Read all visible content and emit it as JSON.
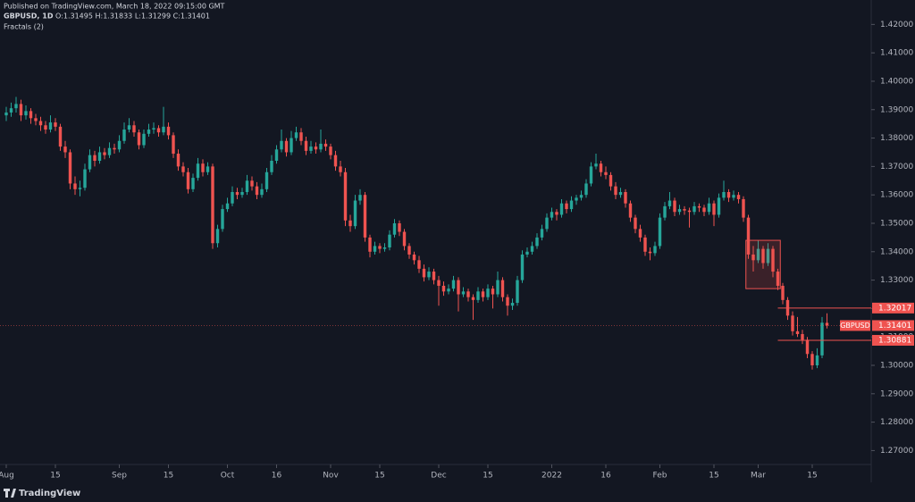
{
  "header": {
    "published": "Published on TradingView.com, March 18, 2022 09:15:00 GMT",
    "symbol": "GBPUSD, 1D",
    "ohlc_text": "O:1.31495 H:1.31833 L:1.31299 C:1.31401",
    "indicator": "Fractals (2)"
  },
  "footer": {
    "brand": "TradingView"
  },
  "chart_data": {
    "type": "candlestick",
    "up_color": "#26a69a",
    "down_color": "#ef5350",
    "xlim": [
      0,
      176
    ],
    "xticks": [
      {
        "value": 0,
        "label": "Aug"
      },
      {
        "value": 10,
        "label": "15"
      },
      {
        "value": 23,
        "label": "Sep"
      },
      {
        "value": 33,
        "label": "15"
      },
      {
        "value": 45,
        "label": "Oct"
      },
      {
        "value": 55,
        "label": "16"
      },
      {
        "value": 66,
        "label": "Nov"
      },
      {
        "value": 76,
        "label": "15"
      },
      {
        "value": 88,
        "label": "Dec"
      },
      {
        "value": 98,
        "label": "15"
      },
      {
        "value": 111,
        "label": "2022"
      },
      {
        "value": 122,
        "label": "16"
      },
      {
        "value": 133,
        "label": "Feb"
      },
      {
        "value": 144,
        "label": "15"
      },
      {
        "value": 153,
        "label": "Mar"
      },
      {
        "value": 164,
        "label": "15"
      }
    ],
    "ylim": [
      1.2651,
      1.4286
    ],
    "yticks": [
      {
        "value": 1.27,
        "label": "1.27000"
      },
      {
        "value": 1.28,
        "label": "1.28000"
      },
      {
        "value": 1.29,
        "label": "1.29000"
      },
      {
        "value": 1.3,
        "label": "1.30000"
      },
      {
        "value": 1.31,
        "label": "1.31000"
      },
      {
        "value": 1.32,
        "label": "1.32000"
      },
      {
        "value": 1.33,
        "label": "1.33000"
      },
      {
        "value": 1.34,
        "label": "1.34000"
      },
      {
        "value": 1.35,
        "label": "1.35000"
      },
      {
        "value": 1.36,
        "label": "1.36000"
      },
      {
        "value": 1.37,
        "label": "1.37000"
      },
      {
        "value": 1.38,
        "label": "1.38000"
      },
      {
        "value": 1.39,
        "label": "1.39000"
      },
      {
        "value": 1.4,
        "label": "1.40000"
      },
      {
        "value": 1.41,
        "label": "1.41000"
      },
      {
        "value": 1.42,
        "label": "1.42000"
      }
    ],
    "last_price": {
      "name": "GBPUSD",
      "value": 1.31401,
      "label": "1.31401"
    },
    "levels": [
      {
        "value": 1.32017,
        "label": "1.32017",
        "from": 157
      },
      {
        "value": 1.30881,
        "label": "1.30881",
        "from": 157
      }
    ],
    "highlight_box": {
      "x": [
        150.5,
        157.5
      ],
      "y": [
        1.327,
        1.344
      ]
    },
    "ohlc": [
      [
        1.388,
        1.391,
        1.386,
        1.389
      ],
      [
        1.389,
        1.3925,
        1.3875,
        1.3905
      ],
      [
        1.3905,
        1.3945,
        1.389,
        1.392
      ],
      [
        1.392,
        1.3935,
        1.386,
        1.388
      ],
      [
        1.388,
        1.3915,
        1.3865,
        1.3895
      ],
      [
        1.3895,
        1.3905,
        1.385,
        1.387
      ],
      [
        1.387,
        1.3885,
        1.3845,
        1.386
      ],
      [
        1.386,
        1.3875,
        1.3825,
        1.3845
      ],
      [
        1.3845,
        1.386,
        1.3815,
        1.383
      ],
      [
        1.383,
        1.388,
        1.382,
        1.3855
      ],
      [
        1.3855,
        1.387,
        1.3825,
        1.384
      ],
      [
        1.384,
        1.385,
        1.3755,
        1.377
      ],
      [
        1.377,
        1.379,
        1.373,
        1.375
      ],
      [
        1.375,
        1.376,
        1.362,
        1.364
      ],
      [
        1.364,
        1.3665,
        1.36,
        1.362
      ],
      [
        1.362,
        1.365,
        1.3595,
        1.3625
      ],
      [
        1.3625,
        1.371,
        1.3615,
        1.369
      ],
      [
        1.369,
        1.376,
        1.368,
        1.374
      ],
      [
        1.374,
        1.3755,
        1.37,
        1.372
      ],
      [
        1.372,
        1.377,
        1.371,
        1.375
      ],
      [
        1.375,
        1.3765,
        1.3725,
        1.374
      ],
      [
        1.374,
        1.3785,
        1.373,
        1.3765
      ],
      [
        1.3765,
        1.378,
        1.3745,
        1.376
      ],
      [
        1.376,
        1.381,
        1.375,
        1.379
      ],
      [
        1.379,
        1.3855,
        1.378,
        1.383
      ],
      [
        1.383,
        1.387,
        1.382,
        1.3845
      ],
      [
        1.3845,
        1.386,
        1.3805,
        1.382
      ],
      [
        1.382,
        1.383,
        1.376,
        1.3775
      ],
      [
        1.3775,
        1.383,
        1.3765,
        1.3815
      ],
      [
        1.3815,
        1.385,
        1.3805,
        1.383
      ],
      [
        1.383,
        1.3855,
        1.3815,
        1.3835
      ],
      [
        1.3835,
        1.3845,
        1.3805,
        1.382
      ],
      [
        1.382,
        1.391,
        1.381,
        1.384
      ],
      [
        1.384,
        1.3855,
        1.3795,
        1.381
      ],
      [
        1.381,
        1.382,
        1.373,
        1.3745
      ],
      [
        1.3745,
        1.376,
        1.3685,
        1.37
      ],
      [
        1.37,
        1.3715,
        1.3665,
        1.368
      ],
      [
        1.368,
        1.3695,
        1.3605,
        1.362
      ],
      [
        1.362,
        1.3675,
        1.361,
        1.366
      ],
      [
        1.366,
        1.373,
        1.365,
        1.371
      ],
      [
        1.371,
        1.3725,
        1.3665,
        1.368
      ],
      [
        1.368,
        1.3715,
        1.367,
        1.37
      ],
      [
        1.37,
        1.371,
        1.341,
        1.343
      ],
      [
        1.343,
        1.3495,
        1.3415,
        1.348
      ],
      [
        1.348,
        1.3565,
        1.347,
        1.355
      ],
      [
        1.355,
        1.359,
        1.354,
        1.357
      ],
      [
        1.357,
        1.363,
        1.356,
        1.361
      ],
      [
        1.361,
        1.3625,
        1.3585,
        1.36
      ],
      [
        1.36,
        1.3625,
        1.359,
        1.361
      ],
      [
        1.361,
        1.367,
        1.36,
        1.365
      ],
      [
        1.365,
        1.3665,
        1.3615,
        1.363
      ],
      [
        1.363,
        1.3645,
        1.3585,
        1.36
      ],
      [
        1.36,
        1.364,
        1.359,
        1.362
      ],
      [
        1.362,
        1.3695,
        1.361,
        1.368
      ],
      [
        1.368,
        1.374,
        1.367,
        1.372
      ],
      [
        1.372,
        1.3775,
        1.371,
        1.376
      ],
      [
        1.376,
        1.383,
        1.375,
        1.379
      ],
      [
        1.379,
        1.38,
        1.3735,
        1.375
      ],
      [
        1.375,
        1.3825,
        1.374,
        1.38
      ],
      [
        1.38,
        1.384,
        1.379,
        1.382
      ],
      [
        1.382,
        1.3835,
        1.3775,
        1.379
      ],
      [
        1.379,
        1.3805,
        1.374,
        1.3755
      ],
      [
        1.3755,
        1.379,
        1.3745,
        1.377
      ],
      [
        1.377,
        1.3785,
        1.3745,
        1.376
      ],
      [
        1.376,
        1.383,
        1.375,
        1.378
      ],
      [
        1.378,
        1.3795,
        1.3755,
        1.377
      ],
      [
        1.377,
        1.378,
        1.3725,
        1.374
      ],
      [
        1.374,
        1.3755,
        1.3685,
        1.37
      ],
      [
        1.37,
        1.372,
        1.3665,
        1.368
      ],
      [
        1.368,
        1.3695,
        1.349,
        1.351
      ],
      [
        1.351,
        1.353,
        1.347,
        1.349
      ],
      [
        1.349,
        1.36,
        1.348,
        1.358
      ],
      [
        1.358,
        1.362,
        1.3565,
        1.36
      ],
      [
        1.36,
        1.361,
        1.3435,
        1.345
      ],
      [
        1.345,
        1.346,
        1.338,
        1.34
      ],
      [
        1.34,
        1.3435,
        1.339,
        1.342
      ],
      [
        1.342,
        1.343,
        1.3395,
        1.341
      ],
      [
        1.341,
        1.343,
        1.34,
        1.3415
      ],
      [
        1.3415,
        1.3475,
        1.3405,
        1.346
      ],
      [
        1.346,
        1.3515,
        1.345,
        1.35
      ],
      [
        1.35,
        1.351,
        1.3455,
        1.347
      ],
      [
        1.347,
        1.348,
        1.3405,
        1.342
      ],
      [
        1.342,
        1.343,
        1.3375,
        1.339
      ],
      [
        1.339,
        1.34,
        1.3355,
        1.337
      ],
      [
        1.337,
        1.3385,
        1.3325,
        1.334
      ],
      [
        1.334,
        1.3355,
        1.3295,
        1.331
      ],
      [
        1.331,
        1.3345,
        1.33,
        1.333
      ],
      [
        1.333,
        1.334,
        1.3285,
        1.33
      ],
      [
        1.33,
        1.3315,
        1.321,
        1.328
      ],
      [
        1.328,
        1.3295,
        1.3245,
        1.326
      ],
      [
        1.326,
        1.3285,
        1.325,
        1.327
      ],
      [
        1.327,
        1.3315,
        1.326,
        1.33
      ],
      [
        1.33,
        1.331,
        1.319,
        1.325
      ],
      [
        1.325,
        1.3275,
        1.324,
        1.326
      ],
      [
        1.326,
        1.327,
        1.3225,
        1.324
      ],
      [
        1.324,
        1.325,
        1.316,
        1.323
      ],
      [
        1.323,
        1.3275,
        1.322,
        1.326
      ],
      [
        1.326,
        1.327,
        1.3225,
        1.324
      ],
      [
        1.324,
        1.3285,
        1.323,
        1.327
      ],
      [
        1.327,
        1.328,
        1.32,
        1.325
      ],
      [
        1.325,
        1.333,
        1.324,
        1.33
      ],
      [
        1.33,
        1.331,
        1.3225,
        1.324
      ],
      [
        1.324,
        1.325,
        1.3175,
        1.321
      ],
      [
        1.321,
        1.3235,
        1.3195,
        1.322
      ],
      [
        1.322,
        1.3315,
        1.321,
        1.33
      ],
      [
        1.33,
        1.3405,
        1.329,
        1.339
      ],
      [
        1.339,
        1.3415,
        1.338,
        1.34
      ],
      [
        1.34,
        1.3435,
        1.339,
        1.342
      ],
      [
        1.342,
        1.3465,
        1.341,
        1.345
      ],
      [
        1.345,
        1.3495,
        1.344,
        1.348
      ],
      [
        1.348,
        1.3535,
        1.347,
        1.352
      ],
      [
        1.352,
        1.3555,
        1.351,
        1.354
      ],
      [
        1.354,
        1.355,
        1.351,
        1.353
      ],
      [
        1.353,
        1.3585,
        1.352,
        1.357
      ],
      [
        1.357,
        1.358,
        1.3535,
        1.355
      ],
      [
        1.355,
        1.3595,
        1.354,
        1.358
      ],
      [
        1.358,
        1.36,
        1.3565,
        1.359
      ],
      [
        1.359,
        1.3615,
        1.358,
        1.36
      ],
      [
        1.36,
        1.3655,
        1.359,
        1.364
      ],
      [
        1.364,
        1.3715,
        1.363,
        1.37
      ],
      [
        1.37,
        1.3745,
        1.369,
        1.371
      ],
      [
        1.371,
        1.372,
        1.3665,
        1.368
      ],
      [
        1.368,
        1.37,
        1.3655,
        1.367
      ],
      [
        1.367,
        1.368,
        1.3615,
        1.363
      ],
      [
        1.363,
        1.3645,
        1.3585,
        1.36
      ],
      [
        1.36,
        1.3625,
        1.359,
        1.361
      ],
      [
        1.361,
        1.362,
        1.3555,
        1.357
      ],
      [
        1.357,
        1.358,
        1.3505,
        1.352
      ],
      [
        1.352,
        1.353,
        1.3465,
        1.348
      ],
      [
        1.348,
        1.3495,
        1.3435,
        1.345
      ],
      [
        1.345,
        1.346,
        1.3385,
        1.34
      ],
      [
        1.34,
        1.3415,
        1.337,
        1.3395
      ],
      [
        1.3395,
        1.3435,
        1.3385,
        1.342
      ],
      [
        1.342,
        1.3535,
        1.341,
        1.352
      ],
      [
        1.352,
        1.3575,
        1.351,
        1.356
      ],
      [
        1.356,
        1.361,
        1.355,
        1.358
      ],
      [
        1.358,
        1.359,
        1.3525,
        1.354
      ],
      [
        1.354,
        1.3565,
        1.353,
        1.355
      ],
      [
        1.355,
        1.356,
        1.353,
        1.3545
      ],
      [
        1.3545,
        1.3555,
        1.3485,
        1.354
      ],
      [
        1.354,
        1.3575,
        1.353,
        1.356
      ],
      [
        1.356,
        1.357,
        1.354,
        1.3555
      ],
      [
        1.3555,
        1.3565,
        1.3525,
        1.354
      ],
      [
        1.354,
        1.359,
        1.353,
        1.357
      ],
      [
        1.357,
        1.358,
        1.349,
        1.353
      ],
      [
        1.353,
        1.3605,
        1.352,
        1.359
      ],
      [
        1.359,
        1.365,
        1.358,
        1.361
      ],
      [
        1.361,
        1.362,
        1.3575,
        1.359
      ],
      [
        1.359,
        1.3615,
        1.358,
        1.36
      ],
      [
        1.36,
        1.361,
        1.357,
        1.3585
      ],
      [
        1.3585,
        1.3595,
        1.3505,
        1.352
      ],
      [
        1.352,
        1.353,
        1.3375,
        1.339
      ],
      [
        1.339,
        1.342,
        1.333,
        1.337
      ],
      [
        1.337,
        1.344,
        1.336,
        1.341
      ],
      [
        1.341,
        1.342,
        1.334,
        1.336
      ],
      [
        1.336,
        1.343,
        1.335,
        1.341
      ],
      [
        1.341,
        1.342,
        1.331,
        1.333
      ],
      [
        1.333,
        1.334,
        1.3265,
        1.328
      ],
      [
        1.328,
        1.329,
        1.3215,
        1.323
      ],
      [
        1.323,
        1.324,
        1.316,
        1.3175
      ],
      [
        1.3175,
        1.319,
        1.3105,
        1.312
      ],
      [
        1.312,
        1.317,
        1.31,
        1.311
      ],
      [
        1.311,
        1.3125,
        1.3075,
        1.309
      ],
      [
        1.309,
        1.31,
        1.3025,
        1.304
      ],
      [
        1.304,
        1.305,
        1.2985,
        1.3
      ],
      [
        1.3,
        1.306,
        1.299,
        1.3035
      ],
      [
        1.3035,
        1.317,
        1.3025,
        1.315
      ],
      [
        1.31495,
        1.31833,
        1.31299,
        1.31401
      ]
    ]
  }
}
